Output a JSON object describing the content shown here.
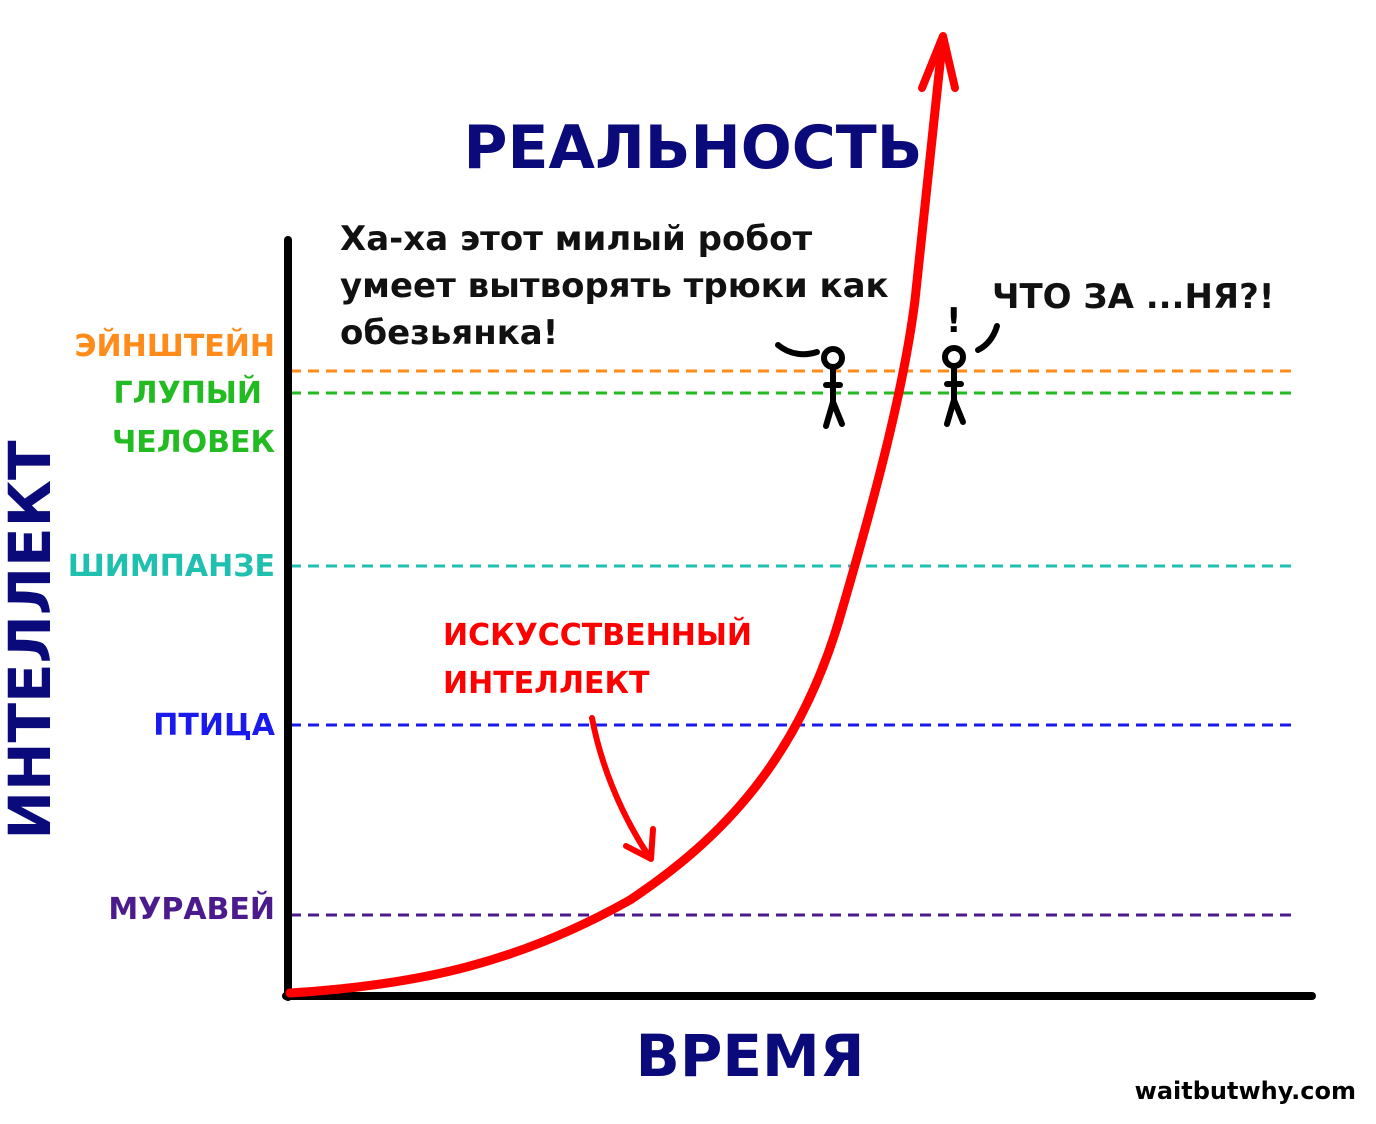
{
  "chart_data": {
    "type": "line",
    "title": "РЕАЛЬНОСТЬ",
    "xlabel": "ВРЕМЯ",
    "ylabel": "ИНТЕЛЛЕКТ",
    "series": [
      {
        "name": "ИСКУССТВЕННЫЙ ИНТЕЛЛЕКТ",
        "color": "#ff0000"
      }
    ],
    "levels": [
      {
        "label": [
          "ЭЙНШТЕЙН"
        ],
        "color": "#ff8c1a"
      },
      {
        "label": [
          "ГЛУПЫЙ",
          "ЧЕЛОВЕК"
        ],
        "color": "#22bb22"
      },
      {
        "label": [
          "ШИМПАНЗЕ"
        ],
        "color": "#20c0b0"
      },
      {
        "label": [
          "ПТИЦА"
        ],
        "color": "#1a1aee"
      },
      {
        "label": [
          "МУРАВЕЙ"
        ],
        "color": "#4b1a8c"
      }
    ],
    "annotations": {
      "ai_label": [
        "ИСКУССТВЕННЫЙ",
        "ИНТЕЛЛЕКТ"
      ],
      "speech_left": [
        "Ха-ха этот милый робот",
        "умеет вытворять трюки как",
        "обезьянка!"
      ],
      "speech_right": "ЧТО ЗА ...НЯ?!",
      "exclamation": "!"
    },
    "credit": "waitbutwhy.com",
    "colors": {
      "title": "#0a0a7a",
      "axis": "#000000",
      "curve": "#ff0000"
    }
  }
}
